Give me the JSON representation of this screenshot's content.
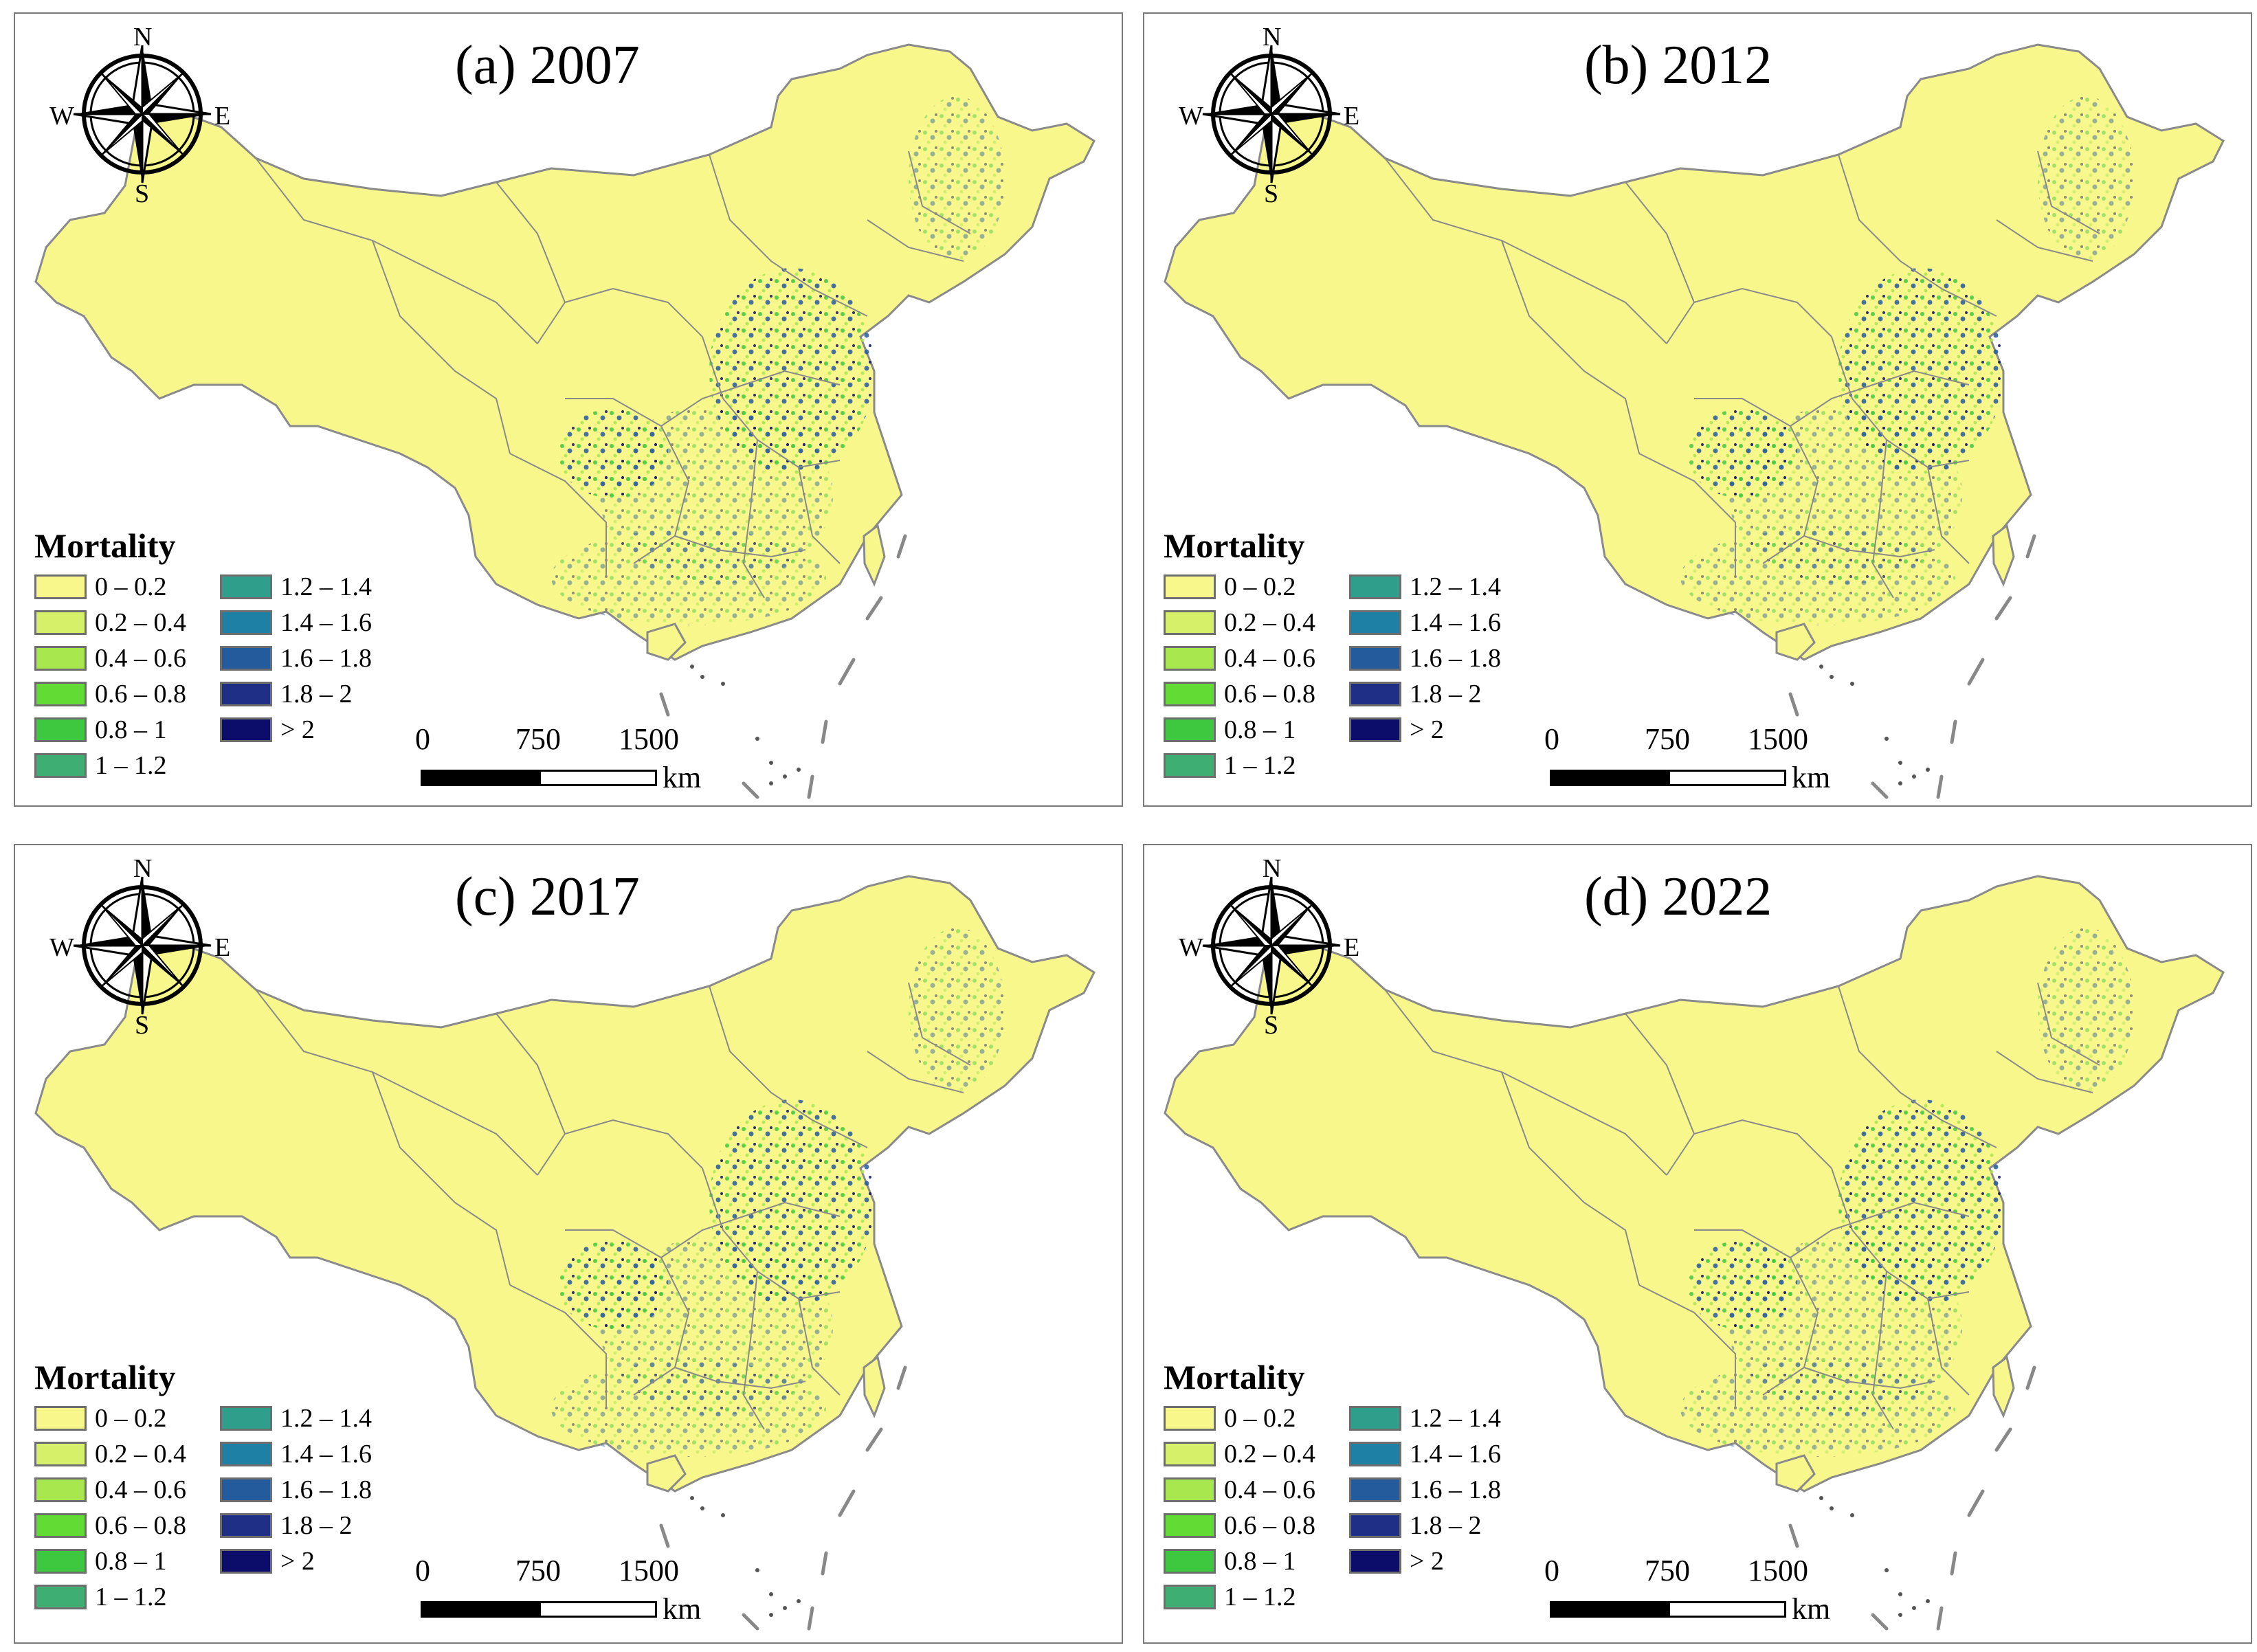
{
  "figure": {
    "panels": [
      {
        "label": "(a) 2007"
      },
      {
        "label": "(b) 2012"
      },
      {
        "label": "(c) 2017"
      },
      {
        "label": "(d) 2022"
      }
    ]
  },
  "compass": {
    "n": "N",
    "s": "S",
    "e": "E",
    "w": "W"
  },
  "legend": {
    "title": "Mortality",
    "classes": [
      {
        "label": "0 – 0.2",
        "color": "#f7f78c"
      },
      {
        "label": "0.2 – 0.4",
        "color": "#d7f06a"
      },
      {
        "label": "0.4 – 0.6",
        "color": "#a8e84e"
      },
      {
        "label": "0.6 – 0.8",
        "color": "#62dc35"
      },
      {
        "label": "0.8 – 1",
        "color": "#3dc83f"
      },
      {
        "label": "1 – 1.2",
        "color": "#3fae72"
      },
      {
        "label": "1.2 – 1.4",
        "color": "#2f9e8a"
      },
      {
        "label": "1.4 – 1.6",
        "color": "#1f80a6"
      },
      {
        "label": "1.6 – 1.8",
        "color": "#245b9c"
      },
      {
        "label": "1.8 – 2",
        "color": "#1f2f86"
      },
      {
        "label": "> 2",
        "color": "#0c0c6a"
      }
    ]
  },
  "scalebar": {
    "ticks": [
      "0",
      "750",
      "1500"
    ],
    "unit": "km"
  },
  "colors": {
    "land_base": "#f7f78c",
    "boundary": "#8a8a8a",
    "frame": "#7a7a7a"
  }
}
